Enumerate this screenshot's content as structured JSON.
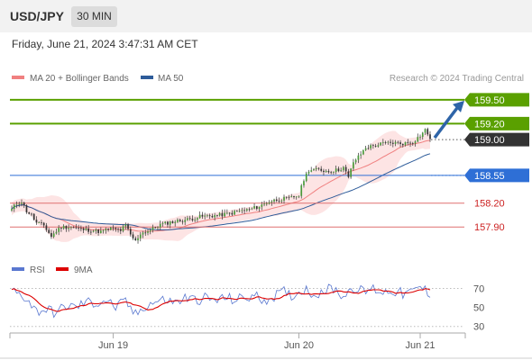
{
  "header": {
    "symbol": "USD/JPY",
    "timeframe": "30 MIN",
    "datetime": "Friday, June 21, 2024 3:47:31 AM CET"
  },
  "legend": {
    "ma20_bb": "MA 20 + Bollinger Bands",
    "ma50": "MA 50",
    "ma20_color": "#f08080",
    "ma50_color": "#2e5c9a"
  },
  "credit": "Research © 2024 Trading Central",
  "colors": {
    "resistance": "#5aa000",
    "support": "#2e6fd6",
    "weak_support": "#e07070",
    "current": "#333333",
    "arrow": "#2e64a8",
    "bull_candle": "#4a9a3a",
    "bear_candle": "#333333",
    "band_fill": "#fde4e4",
    "rsi_color": "#5a78d0",
    "rsi_ma_color": "#dd0000"
  },
  "chart_data": [
    {
      "type": "candlestick",
      "title": "USD/JPY 30 MIN",
      "ylim": [
        157.45,
        159.68
      ],
      "x_labels": [
        "Jun 19",
        "Jun 20",
        "Jun 21"
      ],
      "levels": [
        {
          "value": 159.5,
          "label": "159.50",
          "kind": "resistance"
        },
        {
          "value": 159.2,
          "label": "159.20",
          "kind": "resistance"
        },
        {
          "value": 159.0,
          "label": "159.00",
          "kind": "current"
        },
        {
          "value": 158.55,
          "label": "158.55",
          "kind": "support"
        },
        {
          "value": 158.2,
          "label": "158.20",
          "kind": "weak_support"
        },
        {
          "value": 157.9,
          "label": "157.90",
          "kind": "weak_support"
        }
      ],
      "anchors": [
        [
          0,
          158.12
        ],
        [
          2,
          158.2
        ],
        [
          4,
          158.22
        ],
        [
          6,
          158.1
        ],
        [
          8,
          158.05
        ],
        [
          10,
          157.95
        ],
        [
          13,
          157.92
        ],
        [
          16,
          157.78
        ],
        [
          18,
          157.85
        ],
        [
          20,
          157.9
        ],
        [
          24,
          157.9
        ],
        [
          28,
          157.87
        ],
        [
          32,
          157.86
        ],
        [
          36,
          157.84
        ],
        [
          40,
          157.88
        ],
        [
          44,
          157.86
        ],
        [
          46,
          157.92
        ],
        [
          48,
          157.8
        ],
        [
          50,
          157.72
        ],
        [
          52,
          157.82
        ],
        [
          56,
          157.86
        ],
        [
          60,
          157.93
        ],
        [
          64,
          157.96
        ],
        [
          68,
          157.98
        ],
        [
          72,
          158.0
        ],
        [
          76,
          158.03
        ],
        [
          80,
          158.04
        ],
        [
          84,
          158.05
        ],
        [
          88,
          158.07
        ],
        [
          92,
          158.1
        ],
        [
          96,
          158.12
        ],
        [
          100,
          158.16
        ],
        [
          104,
          158.22
        ],
        [
          108,
          158.25
        ],
        [
          112,
          158.26
        ],
        [
          116,
          158.3
        ],
        [
          118,
          158.5
        ],
        [
          120,
          158.62
        ],
        [
          124,
          158.62
        ],
        [
          128,
          158.6
        ],
        [
          132,
          158.62
        ],
        [
          134,
          158.65
        ],
        [
          136,
          158.52
        ],
        [
          138,
          158.72
        ],
        [
          140,
          158.78
        ],
        [
          143,
          158.9
        ],
        [
          146,
          158.92
        ],
        [
          150,
          158.95
        ],
        [
          154,
          158.96
        ],
        [
          158,
          158.95
        ],
        [
          162,
          158.97
        ],
        [
          165,
          159.05
        ],
        [
          167,
          159.12
        ],
        [
          169,
          159.02
        ]
      ],
      "ma20_label": "MA 20 + Bollinger Bands",
      "ma50_label": "MA 50",
      "forecast_arrow": {
        "from": 159.0,
        "to": 159.5
      }
    },
    {
      "type": "line",
      "legend": [
        "RSI",
        "9MA"
      ],
      "yticks": [
        70,
        50,
        30
      ],
      "ylim": [
        25,
        80
      ],
      "rsi_anchors": [
        [
          0,
          68
        ],
        [
          6,
          60
        ],
        [
          10,
          46
        ],
        [
          14,
          48
        ],
        [
          18,
          44
        ],
        [
          22,
          52
        ],
        [
          26,
          50
        ],
        [
          30,
          56
        ],
        [
          34,
          54
        ],
        [
          38,
          58
        ],
        [
          42,
          50
        ],
        [
          46,
          56
        ],
        [
          50,
          42
        ],
        [
          54,
          52
        ],
        [
          58,
          56
        ],
        [
          62,
          58
        ],
        [
          66,
          55
        ],
        [
          70,
          60
        ],
        [
          74,
          58
        ],
        [
          78,
          60
        ],
        [
          82,
          57
        ],
        [
          86,
          60
        ],
        [
          90,
          58
        ],
        [
          94,
          60
        ],
        [
          98,
          62
        ],
        [
          102,
          58
        ],
        [
          106,
          62
        ],
        [
          110,
          66
        ],
        [
          114,
          62
        ],
        [
          118,
          70
        ],
        [
          122,
          64
        ],
        [
          126,
          68
        ],
        [
          130,
          70
        ],
        [
          134,
          62
        ],
        [
          138,
          72
        ],
        [
          142,
          66
        ],
        [
          146,
          70
        ],
        [
          150,
          66
        ],
        [
          154,
          68
        ],
        [
          158,
          64
        ],
        [
          162,
          66
        ],
        [
          165,
          72
        ],
        [
          169,
          64
        ]
      ]
    }
  ]
}
